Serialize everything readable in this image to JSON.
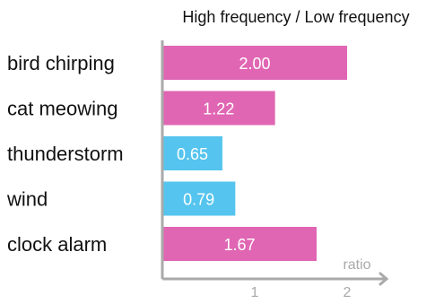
{
  "chart_data": {
    "type": "bar",
    "orientation": "horizontal",
    "title": "High frequency / Low frequency",
    "xlabel": "ratio",
    "ylabel": "",
    "categories": [
      "bird chirping",
      "cat meowing",
      "thunderstorm",
      "wind",
      "clock alarm"
    ],
    "values": [
      2.0,
      1.22,
      0.65,
      0.79,
      1.67
    ],
    "data_labels": [
      "2.00",
      "1.22",
      "0.65",
      "0.79",
      "1.67"
    ],
    "bar_colors": [
      "#e066b3",
      "#e066b3",
      "#55c4ee",
      "#55c4ee",
      "#e066b3"
    ],
    "x_ticks": [
      1,
      2
    ],
    "x_tick_labels": [
      "1",
      "2"
    ],
    "xlim": [
      0,
      2.3
    ],
    "grid": false,
    "legend": "none",
    "colors": {
      "high_bar": "#e066b3",
      "low_bar": "#55c4ee",
      "axis": "#aaaaaa",
      "axis_label": "#a9a9a9",
      "category_text": "#111111",
      "title_text": "#111111",
      "value_text": "#ffffff"
    }
  }
}
